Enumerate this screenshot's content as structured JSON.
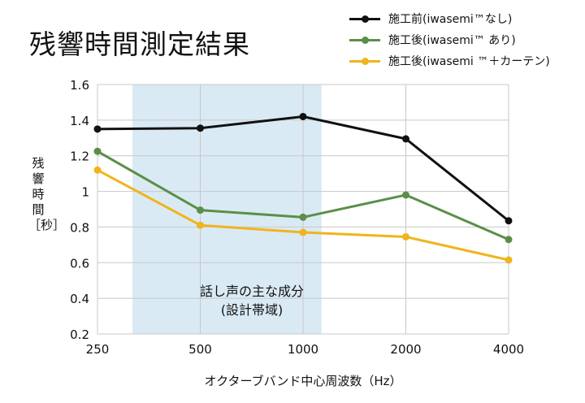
{
  "chart_data": {
    "type": "line",
    "title": "残響時間測定結果",
    "xlabel": "オクターブバンド中心周波数（Hz）",
    "ylabel": "残響時間［秒］",
    "categories": [
      "250",
      "500",
      "1000",
      "2000",
      "4000"
    ],
    "ylim": [
      0.2,
      1.6
    ],
    "yticks": [
      "1.6",
      "1.4",
      "1.2",
      "1",
      "0.8",
      "0.6",
      "0.4",
      "0.2"
    ],
    "grid": true,
    "legend": "top-right",
    "band": {
      "from": 0.34,
      "to": 2.18,
      "label_line1": "話し声の主な成分",
      "label_line2": "(設計帯域)",
      "color": "#daeaf4"
    },
    "series": [
      {
        "name": "施工前(iwasemi™なし)",
        "color": "#111111",
        "values": [
          1.35,
          1.355,
          1.42,
          1.295,
          0.835
        ]
      },
      {
        "name": "施工後(iwasemi™ あり)",
        "color": "#5b8f48",
        "values": [
          1.225,
          0.895,
          0.855,
          0.98,
          0.73
        ]
      },
      {
        "name": "施工後(iwasemi ™＋カーテン)",
        "color": "#f0b41c",
        "values": [
          1.12,
          0.81,
          0.77,
          0.745,
          0.615
        ]
      }
    ]
  }
}
